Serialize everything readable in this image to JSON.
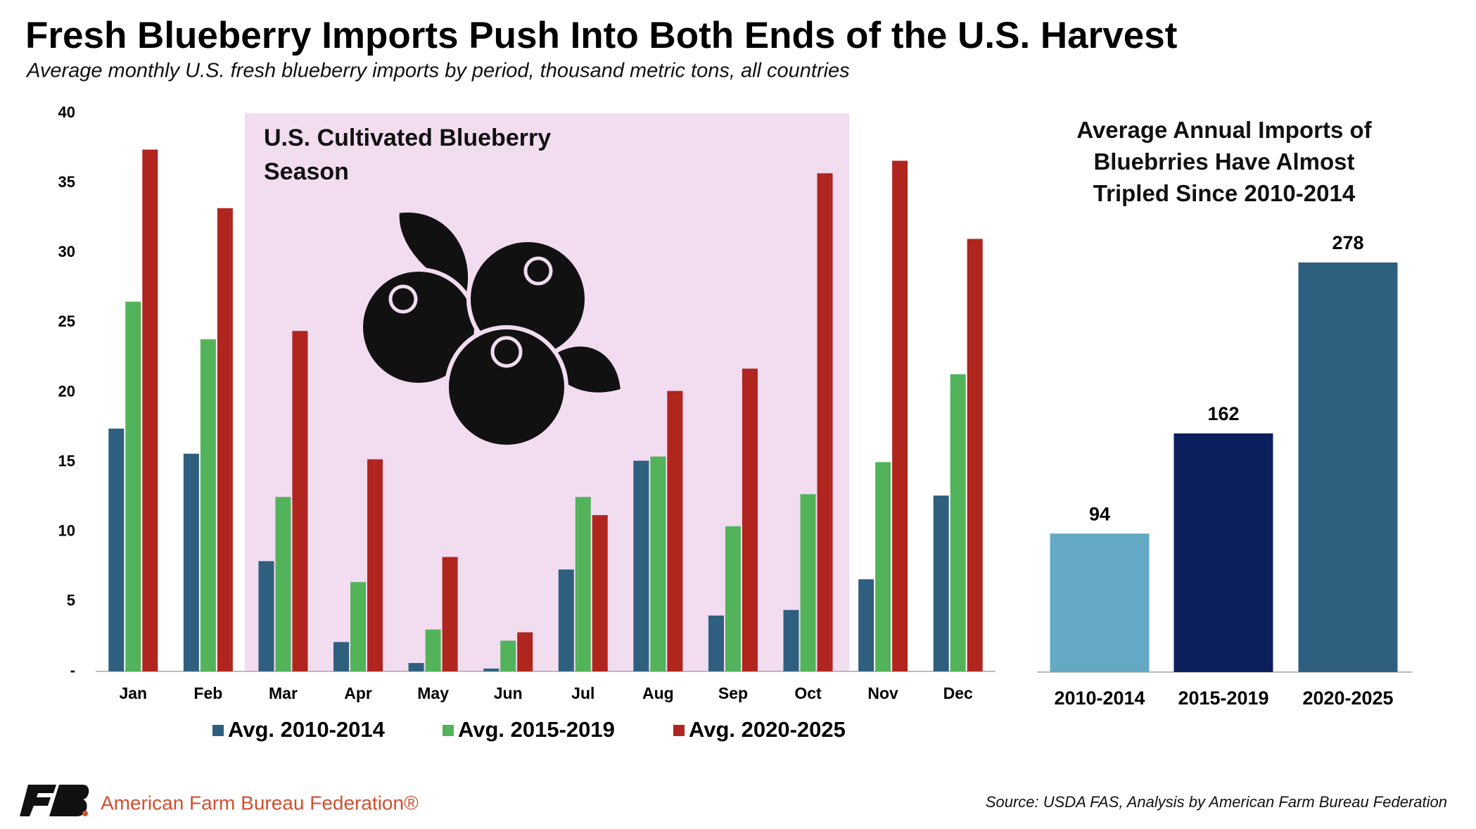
{
  "title": "Fresh Blueberry Imports Push Into Both Ends of the U.S. Harvest",
  "subtitle": "Average monthly U.S. fresh blueberry imports by period, thousand metric tons, all countries",
  "source": "Source: USDA FAS, Analysis by American Farm Bureau Federation",
  "organization": "American Farm Bureau Federation®",
  "chart_data": [
    {
      "type": "bar",
      "annotation": "U.S. Cultivated Blueberry Season",
      "categories": [
        "Jan",
        "Feb",
        "Mar",
        "Apr",
        "May",
        "Jun",
        "Jul",
        "Aug",
        "Sep",
        "Oct",
        "Nov",
        "Dec"
      ],
      "series": [
        {
          "name": "Avg. 2010-2014",
          "color": "#2f5f7f",
          "values": [
            17.4,
            15.6,
            7.9,
            2.1,
            0.6,
            0.2,
            7.3,
            15.1,
            4.0,
            4.4,
            6.6,
            12.6
          ]
        },
        {
          "name": "Avg. 2015-2019",
          "color": "#52b35a",
          "values": [
            26.5,
            23.8,
            12.5,
            6.4,
            3.0,
            2.2,
            12.5,
            15.4,
            10.4,
            12.7,
            15.0,
            21.3
          ]
        },
        {
          "name": "Avg. 2020-2025",
          "color": "#b0251e",
          "values": [
            37.4,
            33.2,
            24.4,
            15.2,
            8.2,
            2.8,
            11.2,
            20.1,
            21.7,
            35.7,
            36.6,
            31.0
          ]
        }
      ],
      "ylim": [
        0,
        40
      ],
      "yticks": [
        {
          "value": 0,
          "label": "-"
        },
        5,
        10,
        15,
        20,
        25,
        30,
        35,
        40
      ]
    },
    {
      "type": "bar",
      "title": "Average Annual Imports of Bluebrries Have Almost Tripled Since 2010-2014",
      "categories": [
        "2010-2014",
        "2015-2019",
        "2020-2025"
      ],
      "values": [
        94,
        162,
        278
      ],
      "colors": [
        "#64a9c4",
        "#0c1f5c",
        "#2f5f7f"
      ]
    }
  ]
}
